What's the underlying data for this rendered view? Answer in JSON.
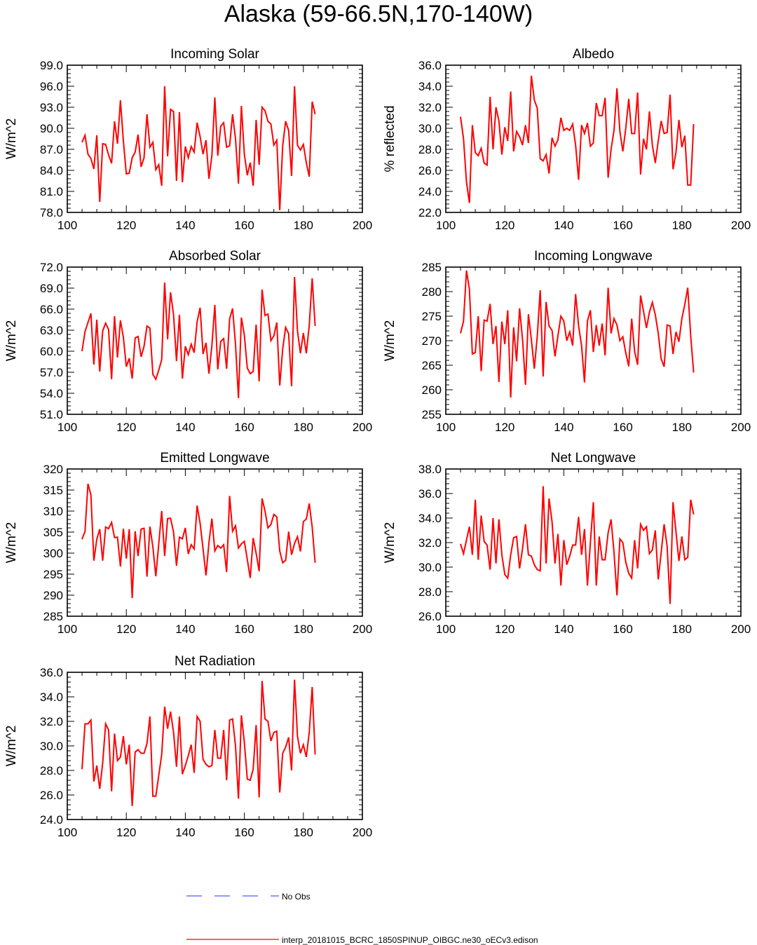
{
  "title": "Alaska (59-66.5N,170-140W)",
  "colors": {
    "model": "#ff0000",
    "obs": "#4a5cff",
    "axis": "#000000"
  },
  "legend": {
    "obs_label": "No Obs",
    "model_label": "interp_20181015_BCRC_1850SPINUP_OIBGC.ne30_oECv3.edison"
  },
  "chart_data": [
    {
      "type": "line",
      "title": "Incoming Solar",
      "xlabel": "",
      "ylabel": "W/m^2",
      "xlim": [
        100,
        200
      ],
      "ylim": [
        78.0,
        99.0
      ],
      "yticks": [
        78,
        81,
        84,
        87,
        90,
        93,
        96,
        99
      ],
      "ytick_labels": [
        "78.0",
        "81.0",
        "84.0",
        "87.0",
        "90.0",
        "93.0",
        "96.0",
        "99.0"
      ],
      "xticks": [
        100,
        120,
        140,
        160,
        180,
        200
      ],
      "xtick_labels": [
        "100",
        "120",
        "140",
        "160",
        "180",
        "200"
      ],
      "grid": false,
      "x_start": 105,
      "values": [
        88.0,
        89.0,
        86.3,
        85.7,
        84.2,
        89.0,
        79.5,
        87.8,
        87.7,
        86.2,
        85.0,
        91.0,
        87.8,
        94.0,
        88.2,
        83.5,
        83.6,
        85.8,
        86.6,
        89.1,
        84.5,
        85.8,
        92.0,
        87.3,
        88.0,
        84.1,
        84.8,
        81.8,
        96.0,
        86.0,
        92.7,
        92.4,
        82.5,
        92.3,
        82.3,
        87.4,
        85.8,
        87.4,
        86.6,
        90.8,
        88.8,
        86.3,
        88.3,
        82.8,
        86.1,
        94.4,
        86.1,
        90.3,
        90.8,
        87.3,
        87.5,
        92.0,
        88.5,
        82.1,
        93.2,
        86.3,
        83.3,
        85.1,
        81.8,
        91.2,
        84.8,
        93.0,
        92.5,
        91.0,
        90.6,
        87.6,
        88.3,
        78.3,
        87.5,
        91.0,
        89.7,
        83.2,
        96.0,
        87.6,
        86.9,
        87.7,
        85.1,
        83.1,
        93.8,
        92.0
      ]
    },
    {
      "type": "line",
      "title": "Albedo",
      "xlabel": "",
      "ylabel": "% reflected",
      "xlim": [
        100,
        200
      ],
      "ylim": [
        22.0,
        36.0
      ],
      "yticks": [
        22,
        24,
        26,
        28,
        30,
        32,
        34,
        36
      ],
      "ytick_labels": [
        "22.0",
        "24.0",
        "26.0",
        "28.0",
        "30.0",
        "32.0",
        "34.0",
        "36.0"
      ],
      "xticks": [
        100,
        120,
        140,
        160,
        180,
        200
      ],
      "xtick_labels": [
        "100",
        "120",
        "140",
        "160",
        "180",
        "200"
      ],
      "grid": false,
      "x_start": 105,
      "values": [
        31.1,
        29.0,
        24.9,
        22.9,
        30.3,
        27.7,
        27.4,
        28.1,
        26.7,
        26.5,
        33.0,
        28.0,
        32.0,
        30.7,
        27.5,
        30.1,
        28.8,
        33.5,
        27.8,
        29.7,
        29.2,
        28.4,
        30.3,
        28.6,
        35.0,
        32.7,
        31.9,
        27.1,
        26.9,
        27.5,
        25.7,
        29.1,
        28.3,
        28.9,
        31.0,
        29.8,
        30.0,
        29.8,
        30.4,
        28.4,
        25.1,
        30.3,
        29.5,
        30.5,
        28.3,
        28.6,
        32.4,
        31.2,
        31.2,
        32.9,
        25.3,
        28.0,
        29.8,
        33.8,
        29.7,
        27.8,
        30.0,
        32.8,
        29.5,
        29.5,
        33.4,
        25.6,
        29.0,
        28.0,
        31.6,
        28.4,
        26.7,
        28.8,
        30.7,
        29.5,
        29.6,
        33.2,
        26.1,
        27.7,
        30.8,
        28.2,
        29.3,
        24.6,
        24.6,
        30.4
      ]
    },
    {
      "type": "line",
      "title": "Absorbed Solar",
      "xlabel": "",
      "ylabel": "W/m^2",
      "xlim": [
        100,
        200
      ],
      "ylim": [
        51.0,
        72.0
      ],
      "yticks": [
        51,
        54,
        57,
        60,
        63,
        66,
        69,
        72
      ],
      "ytick_labels": [
        "51.0",
        "54.0",
        "57.0",
        "60.0",
        "63.0",
        "66.0",
        "69.0",
        "72.0"
      ],
      "xticks": [
        100,
        120,
        140,
        160,
        180,
        200
      ],
      "xtick_labels": [
        "100",
        "120",
        "140",
        "160",
        "180",
        "200"
      ],
      "grid": false,
      "x_start": 105,
      "values": [
        60.0,
        62.8,
        64.1,
        65.4,
        58.1,
        64.5,
        57.1,
        62.9,
        64.0,
        63.1,
        56.0,
        65.0,
        59.1,
        64.4,
        62.0,
        57.8,
        59.0,
        56.1,
        61.9,
        62.1,
        59.2,
        60.7,
        63.6,
        63.3,
        56.7,
        56.0,
        57.3,
        58.8,
        69.8,
        61.7,
        68.4,
        65.2,
        58.6,
        65.2,
        56.1,
        60.7,
        59.5,
        61.0,
        59.8,
        64.2,
        66.2,
        59.6,
        61.2,
        56.8,
        60.8,
        66.6,
        57.4,
        61.4,
        61.8,
        57.5,
        64.6,
        66.1,
        61.0,
        53.3,
        64.8,
        62.3,
        57.6,
        56.8,
        57.1,
        63.8,
        55.7,
        68.8,
        65.1,
        65.3,
        61.5,
        62.2,
        64.1,
        55.1,
        60.3,
        63.4,
        62.5,
        55.0,
        70.6,
        62.9,
        59.7,
        62.6,
        59.7,
        63.7,
        70.4,
        63.6
      ]
    },
    {
      "type": "line",
      "title": "Incoming Longwave",
      "xlabel": "",
      "ylabel": "W/m^2",
      "xlim": [
        100,
        200
      ],
      "ylim": [
        255,
        285
      ],
      "yticks": [
        255,
        260,
        265,
        270,
        275,
        280,
        285
      ],
      "ytick_labels": [
        "255",
        "260",
        "265",
        "270",
        "275",
        "280",
        "285"
      ],
      "xticks": [
        100,
        120,
        140,
        160,
        180,
        200
      ],
      "xtick_labels": [
        "100",
        "120",
        "140",
        "160",
        "180",
        "200"
      ],
      "grid": false,
      "x_start": 105,
      "values": [
        271.5,
        274.0,
        284.3,
        280.5,
        267.3,
        267.6,
        275.0,
        263.8,
        274.2,
        274.0,
        277.5,
        269.3,
        273.0,
        261.6,
        273.9,
        269.3,
        276.2,
        258.4,
        272.7,
        265.8,
        276.6,
        270.3,
        261.0,
        275.4,
        270.2,
        264.3,
        270.9,
        280.3,
        262.7,
        277.9,
        273.0,
        272.1,
        266.8,
        271.0,
        275.0,
        274.0,
        270.0,
        271.8,
        269.0,
        279.5,
        273.0,
        269.0,
        261.5,
        274.0,
        276.2,
        267.7,
        273.2,
        269.0,
        273.5,
        267.0,
        280.8,
        271.5,
        274.5,
        273.2,
        270.0,
        270.8,
        267.5,
        264.8,
        274.5,
        267.8,
        265.1,
        279.2,
        276.0,
        272.6,
        275.8,
        277.8,
        275.3,
        271.5,
        266.3,
        264.7,
        273.2,
        273.0,
        267.3,
        271.8,
        269.8,
        274.5,
        277.4,
        280.8,
        271.0,
        263.5
      ]
    },
    {
      "type": "line",
      "title": "Emitted Longwave",
      "xlabel": "",
      "ylabel": "W/m^2",
      "xlim": [
        100,
        200
      ],
      "ylim": [
        285,
        320
      ],
      "yticks": [
        285,
        290,
        295,
        300,
        305,
        310,
        315,
        320
      ],
      "ytick_labels": [
        "285",
        "290",
        "295",
        "300",
        "305",
        "310",
        "315",
        "320"
      ],
      "xticks": [
        100,
        120,
        140,
        160,
        180,
        200
      ],
      "xtick_labels": [
        "100",
        "120",
        "140",
        "160",
        "180",
        "200"
      ],
      "grid": false,
      "x_start": 105,
      "values": [
        303.3,
        305.2,
        316.5,
        313.8,
        298.2,
        303.3,
        305.7,
        298.2,
        306.2,
        305.8,
        307.3,
        303.7,
        303.8,
        296.8,
        305.8,
        298.7,
        305.7,
        289.3,
        305.2,
        299.3,
        305.7,
        305.9,
        294.4,
        306.3,
        301.5,
        294.5,
        302.2,
        310.0,
        299.3,
        308.2,
        308.3,
        305.0,
        297.0,
        303.8,
        303.4,
        306.0,
        299.8,
        302.0,
        301.0,
        311.3,
        307.1,
        301.0,
        294.7,
        302.5,
        308.2,
        300.5,
        301.8,
        301.2,
        302.0,
        295.5,
        313.6,
        305.2,
        306.5,
        301.2,
        302.2,
        302.8,
        298.5,
        294.1,
        303.6,
        300.0,
        295.7,
        313.0,
        310.0,
        306.0,
        306.8,
        309.2,
        308.6,
        300.5,
        297.7,
        298.3,
        305.1,
        299.6,
        302.3,
        303.9,
        300.4,
        307.5,
        308.1,
        311.8,
        306.2,
        297.7
      ]
    },
    {
      "type": "line",
      "title": "Net Longwave",
      "xlabel": "",
      "ylabel": "W/m^2",
      "xlim": [
        100,
        200
      ],
      "ylim": [
        26.0,
        38.0
      ],
      "yticks": [
        26,
        28,
        30,
        32,
        34,
        36,
        38
      ],
      "ytick_labels": [
        "26.0",
        "28.0",
        "30.0",
        "32.0",
        "34.0",
        "36.0",
        "38.0"
      ],
      "xticks": [
        100,
        120,
        140,
        160,
        180,
        200
      ],
      "xtick_labels": [
        "100",
        "120",
        "140",
        "160",
        "180",
        "200"
      ],
      "grid": false,
      "x_start": 105,
      "values": [
        31.9,
        31.1,
        32.2,
        33.3,
        31.0,
        35.5,
        30.6,
        34.2,
        32.1,
        31.8,
        29.8,
        34.0,
        30.3,
        33.9,
        31.0,
        29.4,
        29.1,
        31.0,
        32.4,
        32.5,
        29.9,
        31.5,
        33.5,
        31.0,
        30.9,
        30.2,
        29.8,
        29.7,
        36.6,
        30.3,
        35.6,
        33.7,
        30.3,
        32.7,
        28.5,
        32.2,
        30.2,
        30.9,
        31.8,
        31.8,
        34.1,
        31.0,
        33.1,
        28.5,
        32.0,
        35.3,
        28.5,
        32.5,
        30.6,
        30.6,
        32.8,
        33.9,
        31.2,
        27.7,
        32.3,
        32.0,
        30.4,
        29.5,
        29.1,
        32.2,
        29.9,
        33.5,
        33.0,
        33.3,
        31.1,
        31.4,
        33.0,
        29.0,
        31.2,
        33.5,
        31.7,
        27.0,
        35.3,
        32.9,
        30.5,
        32.5,
        30.6,
        30.8,
        35.5,
        34.3
      ]
    },
    {
      "type": "line",
      "title": "Net Radiation",
      "xlabel": "",
      "ylabel": "W/m^2",
      "xlim": [
        100,
        200
      ],
      "ylim": [
        24.0,
        36.0
      ],
      "yticks": [
        24,
        26,
        28,
        30,
        32,
        34,
        36
      ],
      "ytick_labels": [
        "24.0",
        "26.0",
        "28.0",
        "30.0",
        "32.0",
        "34.0",
        "36.0"
      ],
      "xticks": [
        100,
        120,
        140,
        160,
        180,
        200
      ],
      "xtick_labels": [
        "100",
        "120",
        "140",
        "160",
        "180",
        "200"
      ],
      "grid": false,
      "x_start": 105,
      "values": [
        28.1,
        31.8,
        31.8,
        32.1,
        27.1,
        28.4,
        26.5,
        28.6,
        31.8,
        31.3,
        26.3,
        31.0,
        28.8,
        29.1,
        30.8,
        28.5,
        30.1,
        25.1,
        29.5,
        29.7,
        29.4,
        29.4,
        30.2,
        32.4,
        25.9,
        25.9,
        27.6,
        29.3,
        33.2,
        31.4,
        32.8,
        31.1,
        28.3,
        32.4,
        27.7,
        28.4,
        29.2,
        30.1,
        27.8,
        32.4,
        32.0,
        28.9,
        28.5,
        28.3,
        28.4,
        31.3,
        29.0,
        29.0,
        31.3,
        27.2,
        32.1,
        32.2,
        30.0,
        25.7,
        32.5,
        30.3,
        27.3,
        27.2,
        28.1,
        31.7,
        25.8,
        35.3,
        32.2,
        32.0,
        30.4,
        31.1,
        31.2,
        26.2,
        29.4,
        29.9,
        30.7,
        28.0,
        35.4,
        30.8,
        29.4,
        30.1,
        29.1,
        31.1,
        34.8,
        29.3
      ]
    }
  ]
}
